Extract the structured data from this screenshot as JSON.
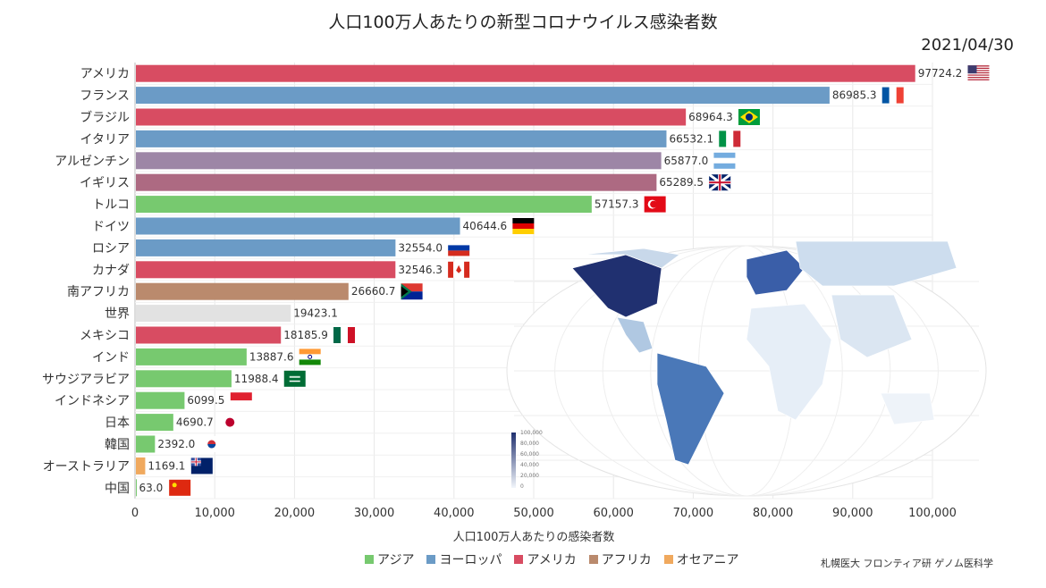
{
  "title": "人口100万人あたりの新型コロナウイルス感染者数",
  "date": "2021/04/30",
  "credit": "札幌医大 フロンティア研 ゲノム医科学",
  "colors": {
    "asia": "#77c96f",
    "europe": "#6b9bc6",
    "americas": "#d84c62",
    "africa": "#ba8a6d",
    "oceania": "#f0a95e",
    "world": "#e2e2e2",
    "argentina": "#9d86a6",
    "uk": "#ad6a82"
  },
  "chart_data": {
    "type": "bar",
    "orientation": "horizontal",
    "xlabel": "人口100万人あたりの感染者数",
    "xlim": [
      0,
      100000
    ],
    "xticks": [
      "0",
      "10,000",
      "20,000",
      "30,000",
      "40,000",
      "50,000",
      "60,000",
      "70,000",
      "80,000",
      "90,000",
      "100,000"
    ],
    "grid": true,
    "legend_position": "bottom",
    "legend": [
      {
        "label": "アジア",
        "color": "#77c96f"
      },
      {
        "label": "ヨーロッパ",
        "color": "#6b9bc6"
      },
      {
        "label": "アメリカ",
        "color": "#d84c62"
      },
      {
        "label": "アフリカ",
        "color": "#ba8a6d"
      },
      {
        "label": "オセアニア",
        "color": "#f0a95e"
      }
    ],
    "bars": [
      {
        "category": "アメリカ",
        "value": 97724.2,
        "label": "97724.2",
        "region": "americas",
        "flag": "us-flag"
      },
      {
        "category": "フランス",
        "value": 86985.3,
        "label": "86985.3",
        "region": "europe",
        "flag": "france-flag"
      },
      {
        "category": "ブラジル",
        "value": 68964.3,
        "label": "68964.3",
        "region": "americas",
        "flag": "brazil-flag"
      },
      {
        "category": "イタリア",
        "value": 66532.1,
        "label": "66532.1",
        "region": "europe",
        "flag": "italy-flag"
      },
      {
        "category": "アルゼンチン",
        "value": 65877.0,
        "label": "65877.0",
        "region": "argentina",
        "flag": "argentina-flag"
      },
      {
        "category": "イギリス",
        "value": 65289.5,
        "label": "65289.5",
        "region": "uk",
        "flag": "uk-flag"
      },
      {
        "category": "トルコ",
        "value": 57157.3,
        "label": "57157.3",
        "region": "asia",
        "flag": "turkey-flag"
      },
      {
        "category": "ドイツ",
        "value": 40644.6,
        "label": "40644.6",
        "region": "europe",
        "flag": "germany-flag"
      },
      {
        "category": "ロシア",
        "value": 32554.0,
        "label": "32554.0",
        "region": "europe",
        "flag": "russia-flag"
      },
      {
        "category": "カナダ",
        "value": 32546.3,
        "label": "32546.3",
        "region": "americas",
        "flag": "canada-flag"
      },
      {
        "category": "南アフリカ",
        "value": 26660.7,
        "label": "26660.7",
        "region": "africa",
        "flag": "south-africa-flag"
      },
      {
        "category": "世界",
        "value": 19423.1,
        "label": "19423.1",
        "region": "world",
        "flag": ""
      },
      {
        "category": "メキシコ",
        "value": 18185.9,
        "label": "18185.9",
        "region": "americas",
        "flag": "mexico-flag"
      },
      {
        "category": "インド",
        "value": 13887.6,
        "label": "13887.6",
        "region": "asia",
        "flag": "india-flag"
      },
      {
        "category": "サウジアラビア",
        "value": 11988.4,
        "label": "11988.4",
        "region": "asia",
        "flag": "saudi-flag"
      },
      {
        "category": "インドネシア",
        "value": 6099.5,
        "label": "6099.5",
        "region": "asia",
        "flag": "indonesia-flag"
      },
      {
        "category": "日本",
        "value": 4690.7,
        "label": "4690.7",
        "region": "asia",
        "flag": "japan-flag"
      },
      {
        "category": "韓国",
        "value": 2392.0,
        "label": "2392.0",
        "region": "asia",
        "flag": "korea-flag"
      },
      {
        "category": "オーストラリア",
        "value": 1169.1,
        "label": "1169.1",
        "region": "oceania",
        "flag": "australia-flag"
      },
      {
        "category": "中国",
        "value": 63.0,
        "label": "63.0",
        "region": "asia",
        "flag": "china-flag"
      }
    ]
  },
  "map_legend": {
    "ticks": [
      "100,000",
      "80,000",
      "60,000",
      "40,000",
      "20,000",
      "0"
    ]
  }
}
